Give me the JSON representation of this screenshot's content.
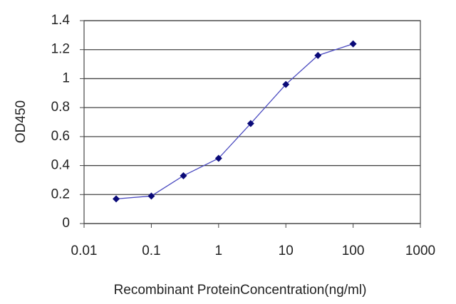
{
  "chart_data": {
    "type": "line",
    "x": [
      0.03,
      0.1,
      0.3,
      1,
      3,
      10,
      30,
      100
    ],
    "values": [
      0.17,
      0.19,
      0.33,
      0.45,
      0.69,
      0.96,
      1.16,
      1.24
    ],
    "color": "#4a4ac0",
    "marker_color": "#0a0a78",
    "xlabel": "Recombinant ProteinConcentration(ng/ml)",
    "ylabel": "OD450",
    "xscale": "log",
    "xlim": [
      0.01,
      1000
    ],
    "xticks": [
      0.01,
      0.1,
      1,
      10,
      100,
      1000
    ],
    "ylim": [
      0,
      1.4
    ],
    "yticks": [
      0,
      0.2,
      0.4,
      0.6,
      0.8,
      1,
      1.2,
      1.4
    ],
    "grid": true
  }
}
